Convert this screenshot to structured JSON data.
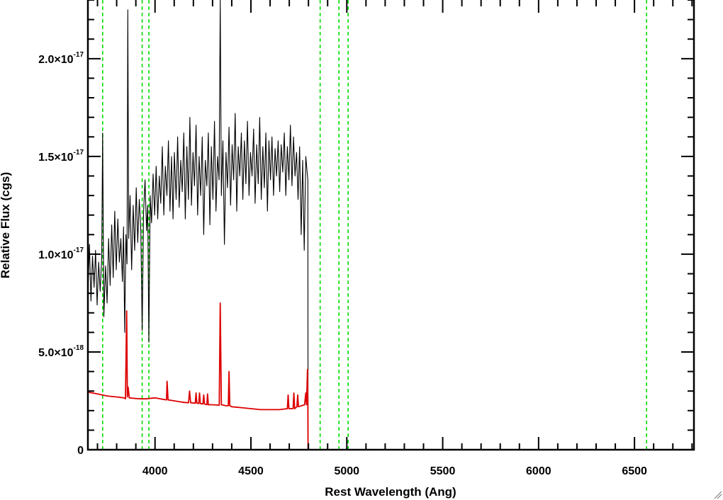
{
  "chart_data": {
    "type": "line",
    "xlabel": "Rest Wavelength (Ang)",
    "ylabel": "Relative Flux (cgs)",
    "xlim": [
      3650,
      6810
    ],
    "ylim": [
      0,
      2.3e-17
    ],
    "x_ticks": [
      {
        "value": 4000,
        "label": "4000"
      },
      {
        "value": 4500,
        "label": "4500"
      },
      {
        "value": 5000,
        "label": "5000"
      },
      {
        "value": 5500,
        "label": "5500"
      },
      {
        "value": 6000,
        "label": "6000"
      },
      {
        "value": 6500,
        "label": "6500"
      }
    ],
    "y_ticks": [
      {
        "value": 0,
        "mant": "0",
        "exp": ""
      },
      {
        "value": 5e-18,
        "mant": "5.0×10",
        "exp": "-18"
      },
      {
        "value": 1e-17,
        "mant": "1.0×10",
        "exp": "-17"
      },
      {
        "value": 1.5e-17,
        "mant": "1.5×10",
        "exp": "-17"
      },
      {
        "value": 2e-17,
        "mant": "2.0×10",
        "exp": "-17"
      }
    ],
    "x_minor_step": 100,
    "y_minor_step": 1e-18,
    "reference_lines": {
      "color": "#00dd00",
      "style": "dashed",
      "x": [
        3727,
        3933,
        3968,
        4861,
        4959,
        5007,
        6563
      ]
    },
    "series": [
      {
        "color": "#000000",
        "points": [
          [
            3650,
            8e-18
          ],
          [
            3658,
            1.05e-17
          ],
          [
            3666,
            7.6e-18
          ],
          [
            3674,
            9.9e-18
          ],
          [
            3682,
            8.3e-18
          ],
          [
            3690,
            1.02e-17
          ],
          [
            3698,
            7.4e-18
          ],
          [
            3706,
            9.6e-18
          ],
          [
            3714,
            8.1e-18
          ],
          [
            3722,
            9.8e-18
          ],
          [
            3727,
            1.62e-17
          ],
          [
            3733,
            6.8e-18
          ],
          [
            3742,
            9.4e-18
          ],
          [
            3750,
            7.5e-18
          ],
          [
            3758,
            1.08e-17
          ],
          [
            3766,
            8.4e-18
          ],
          [
            3774,
            1.15e-17
          ],
          [
            3782,
            8.8e-18
          ],
          [
            3790,
            1.22e-17
          ],
          [
            3798,
            9.2e-18
          ],
          [
            3806,
            1.18e-17
          ],
          [
            3814,
            9.6e-18
          ],
          [
            3822,
            1.08e-17
          ],
          [
            3830,
            8.6e-18
          ],
          [
            3836,
            1.14e-17
          ],
          [
            3842,
            6e-18
          ],
          [
            3848,
            1.1e-17
          ],
          [
            3854,
            9.5e-18
          ],
          [
            3858,
            2.25e-17
          ],
          [
            3863,
            1.08e-17
          ],
          [
            3870,
            1.3e-17
          ],
          [
            3878,
            9.2e-18
          ],
          [
            3886,
            1.25e-17
          ],
          [
            3894,
            1.02e-17
          ],
          [
            3902,
            1.34e-17
          ],
          [
            3910,
            1.06e-17
          ],
          [
            3918,
            1.28e-17
          ],
          [
            3926,
            1.12e-17
          ],
          [
            3933,
            6.1e-18
          ],
          [
            3940,
            1.21e-17
          ],
          [
            3948,
            1.38e-17
          ],
          [
            3956,
            1.12e-17
          ],
          [
            3962,
            1.25e-17
          ],
          [
            3968,
            5.5e-18
          ],
          [
            3975,
            1.3e-17
          ],
          [
            3982,
            1.16e-17
          ],
          [
            3990,
            1.41e-17
          ],
          [
            3998,
            1.2e-17
          ],
          [
            4006,
            1.45e-17
          ],
          [
            4014,
            1.18e-17
          ],
          [
            4022,
            1.4e-17
          ],
          [
            4030,
            1.26e-17
          ],
          [
            4038,
            1.55e-17
          ],
          [
            4046,
            1.2e-17
          ],
          [
            4054,
            1.45e-17
          ],
          [
            4062,
            1.3e-17
          ],
          [
            4070,
            1.58e-17
          ],
          [
            4078,
            1.22e-17
          ],
          [
            4086,
            1.5e-17
          ],
          [
            4094,
            1.18e-17
          ],
          [
            4101,
            1.52e-17
          ],
          [
            4110,
            1.28e-17
          ],
          [
            4118,
            1.6e-17
          ],
          [
            4126,
            1.24e-17
          ],
          [
            4134,
            1.48e-17
          ],
          [
            4142,
            1.32e-17
          ],
          [
            4150,
            1.62e-17
          ],
          [
            4158,
            1.18e-17
          ],
          [
            4166,
            1.55e-17
          ],
          [
            4174,
            1.28e-17
          ],
          [
            4182,
            1.7e-17
          ],
          [
            4190,
            1.25e-17
          ],
          [
            4198,
            1.52e-17
          ],
          [
            4206,
            1.35e-17
          ],
          [
            4214,
            1.66e-17
          ],
          [
            4222,
            1.2e-17
          ],
          [
            4230,
            1.5e-17
          ],
          [
            4238,
            1.3e-17
          ],
          [
            4246,
            1.6e-17
          ],
          [
            4254,
            1.1e-17
          ],
          [
            4262,
            1.48e-17
          ],
          [
            4270,
            1.35e-17
          ],
          [
            4278,
            1.62e-17
          ],
          [
            4286,
            1.15e-17
          ],
          [
            4294,
            1.55e-17
          ],
          [
            4302,
            1.28e-17
          ],
          [
            4310,
            1.68e-17
          ],
          [
            4318,
            1.22e-17
          ],
          [
            4326,
            1.5e-17
          ],
          [
            4334,
            1.38e-17
          ],
          [
            4340,
            2.3e-17
          ],
          [
            4346,
            1.3e-17
          ],
          [
            4354,
            1.58e-17
          ],
          [
            4362,
            1.05e-17
          ],
          [
            4370,
            1.52e-17
          ],
          [
            4378,
            1.34e-17
          ],
          [
            4386,
            1.65e-17
          ],
          [
            4394,
            1.25e-17
          ],
          [
            4402,
            1.56e-17
          ],
          [
            4410,
            1.38e-17
          ],
          [
            4418,
            1.72e-17
          ],
          [
            4426,
            1.22e-17
          ],
          [
            4434,
            1.55e-17
          ],
          [
            4442,
            1.4e-17
          ],
          [
            4450,
            1.62e-17
          ],
          [
            4458,
            1.28e-17
          ],
          [
            4466,
            1.58e-17
          ],
          [
            4474,
            1.36e-17
          ],
          [
            4482,
            1.68e-17
          ],
          [
            4490,
            1.3e-17
          ],
          [
            4498,
            1.52e-17
          ],
          [
            4506,
            1.4e-17
          ],
          [
            4514,
            1.64e-17
          ],
          [
            4522,
            1.26e-17
          ],
          [
            4530,
            1.56e-17
          ],
          [
            4538,
            1.36e-17
          ],
          [
            4546,
            1.7e-17
          ],
          [
            4554,
            1.28e-17
          ],
          [
            4562,
            1.55e-17
          ],
          [
            4570,
            1.34e-17
          ],
          [
            4578,
            1.62e-17
          ],
          [
            4586,
            1.22e-17
          ],
          [
            4594,
            1.58e-17
          ],
          [
            4602,
            1.38e-17
          ],
          [
            4610,
            1.6e-17
          ],
          [
            4618,
            1.3e-17
          ],
          [
            4626,
            1.54e-17
          ],
          [
            4634,
            1.4e-17
          ],
          [
            4642,
            1.58e-17
          ],
          [
            4650,
            1.32e-17
          ],
          [
            4658,
            1.56e-17
          ],
          [
            4666,
            1.42e-17
          ],
          [
            4674,
            1.62e-17
          ],
          [
            4682,
            1.3e-17
          ],
          [
            4690,
            1.55e-17
          ],
          [
            4698,
            1.38e-17
          ],
          [
            4706,
            1.66e-17
          ],
          [
            4714,
            1.35e-17
          ],
          [
            4722,
            1.6e-17
          ],
          [
            4730,
            1.4e-17
          ],
          [
            4738,
            1.52e-17
          ],
          [
            4746,
            1.28e-17
          ],
          [
            4754,
            1.55e-17
          ],
          [
            4762,
            1.1e-17
          ],
          [
            4770,
            1.48e-17
          ],
          [
            4778,
            1.02e-17
          ],
          [
            4786,
            1.5e-17
          ],
          [
            4793,
            1.42e-17
          ],
          [
            4797,
            1.38e-17
          ],
          [
            4798,
            0.0
          ],
          [
            6810,
            0.0
          ]
        ]
      },
      {
        "color": "#dd0000",
        "points": [
          [
            3650,
            2.95e-18
          ],
          [
            3700,
            2.85e-18
          ],
          [
            3750,
            2.75e-18
          ],
          [
            3800,
            2.7e-18
          ],
          [
            3840,
            2.65e-18
          ],
          [
            3846,
            2.6e-18
          ],
          [
            3852,
            7.1e-18
          ],
          [
            3856,
            2.7e-18
          ],
          [
            3860,
            3.2e-18
          ],
          [
            3866,
            2.65e-18
          ],
          [
            3900,
            2.62e-18
          ],
          [
            3933,
            2.6e-18
          ],
          [
            3950,
            2.6e-18
          ],
          [
            3968,
            2.62e-18
          ],
          [
            4000,
            2.65e-18
          ],
          [
            4040,
            2.58e-18
          ],
          [
            4060,
            2.55e-18
          ],
          [
            4063,
            3.5e-18
          ],
          [
            4068,
            2.55e-18
          ],
          [
            4100,
            2.5e-18
          ],
          [
            4150,
            2.42e-18
          ],
          [
            4175,
            2.4e-18
          ],
          [
            4180,
            3e-18
          ],
          [
            4186,
            2.4e-18
          ],
          [
            4210,
            2.38e-18
          ],
          [
            4214,
            2.9e-18
          ],
          [
            4218,
            2.38e-18
          ],
          [
            4228,
            2.36e-18
          ],
          [
            4232,
            2.9e-18
          ],
          [
            4236,
            2.36e-18
          ],
          [
            4250,
            2.34e-18
          ],
          [
            4254,
            2.8e-18
          ],
          [
            4258,
            2.34e-18
          ],
          [
            4270,
            2.3e-18
          ],
          [
            4274,
            2.85e-18
          ],
          [
            4278,
            2.3e-18
          ],
          [
            4300,
            2.3e-18
          ],
          [
            4335,
            2.28e-18
          ],
          [
            4340,
            7.5e-18
          ],
          [
            4346,
            2.3e-18
          ],
          [
            4370,
            2.25e-18
          ],
          [
            4382,
            2.25e-18
          ],
          [
            4386,
            4e-18
          ],
          [
            4390,
            2.25e-18
          ],
          [
            4400,
            2.2e-18
          ],
          [
            4450,
            2.15e-18
          ],
          [
            4500,
            2.1e-18
          ],
          [
            4550,
            2.05e-18
          ],
          [
            4600,
            2.05e-18
          ],
          [
            4650,
            2.05e-18
          ],
          [
            4690,
            2.1e-18
          ],
          [
            4694,
            2.8e-18
          ],
          [
            4698,
            2.1e-18
          ],
          [
            4720,
            2.1e-18
          ],
          [
            4724,
            2.9e-18
          ],
          [
            4728,
            2.1e-18
          ],
          [
            4740,
            2.2e-18
          ],
          [
            4744,
            2.8e-18
          ],
          [
            4748,
            2.2e-18
          ],
          [
            4780,
            2.3e-18
          ],
          [
            4786,
            2.9e-18
          ],
          [
            4790,
            2.3e-18
          ],
          [
            4795,
            4.1e-18
          ],
          [
            4797,
            2.5e-18
          ],
          [
            4798,
            0.0
          ],
          [
            6810,
            0.0
          ]
        ]
      }
    ]
  }
}
